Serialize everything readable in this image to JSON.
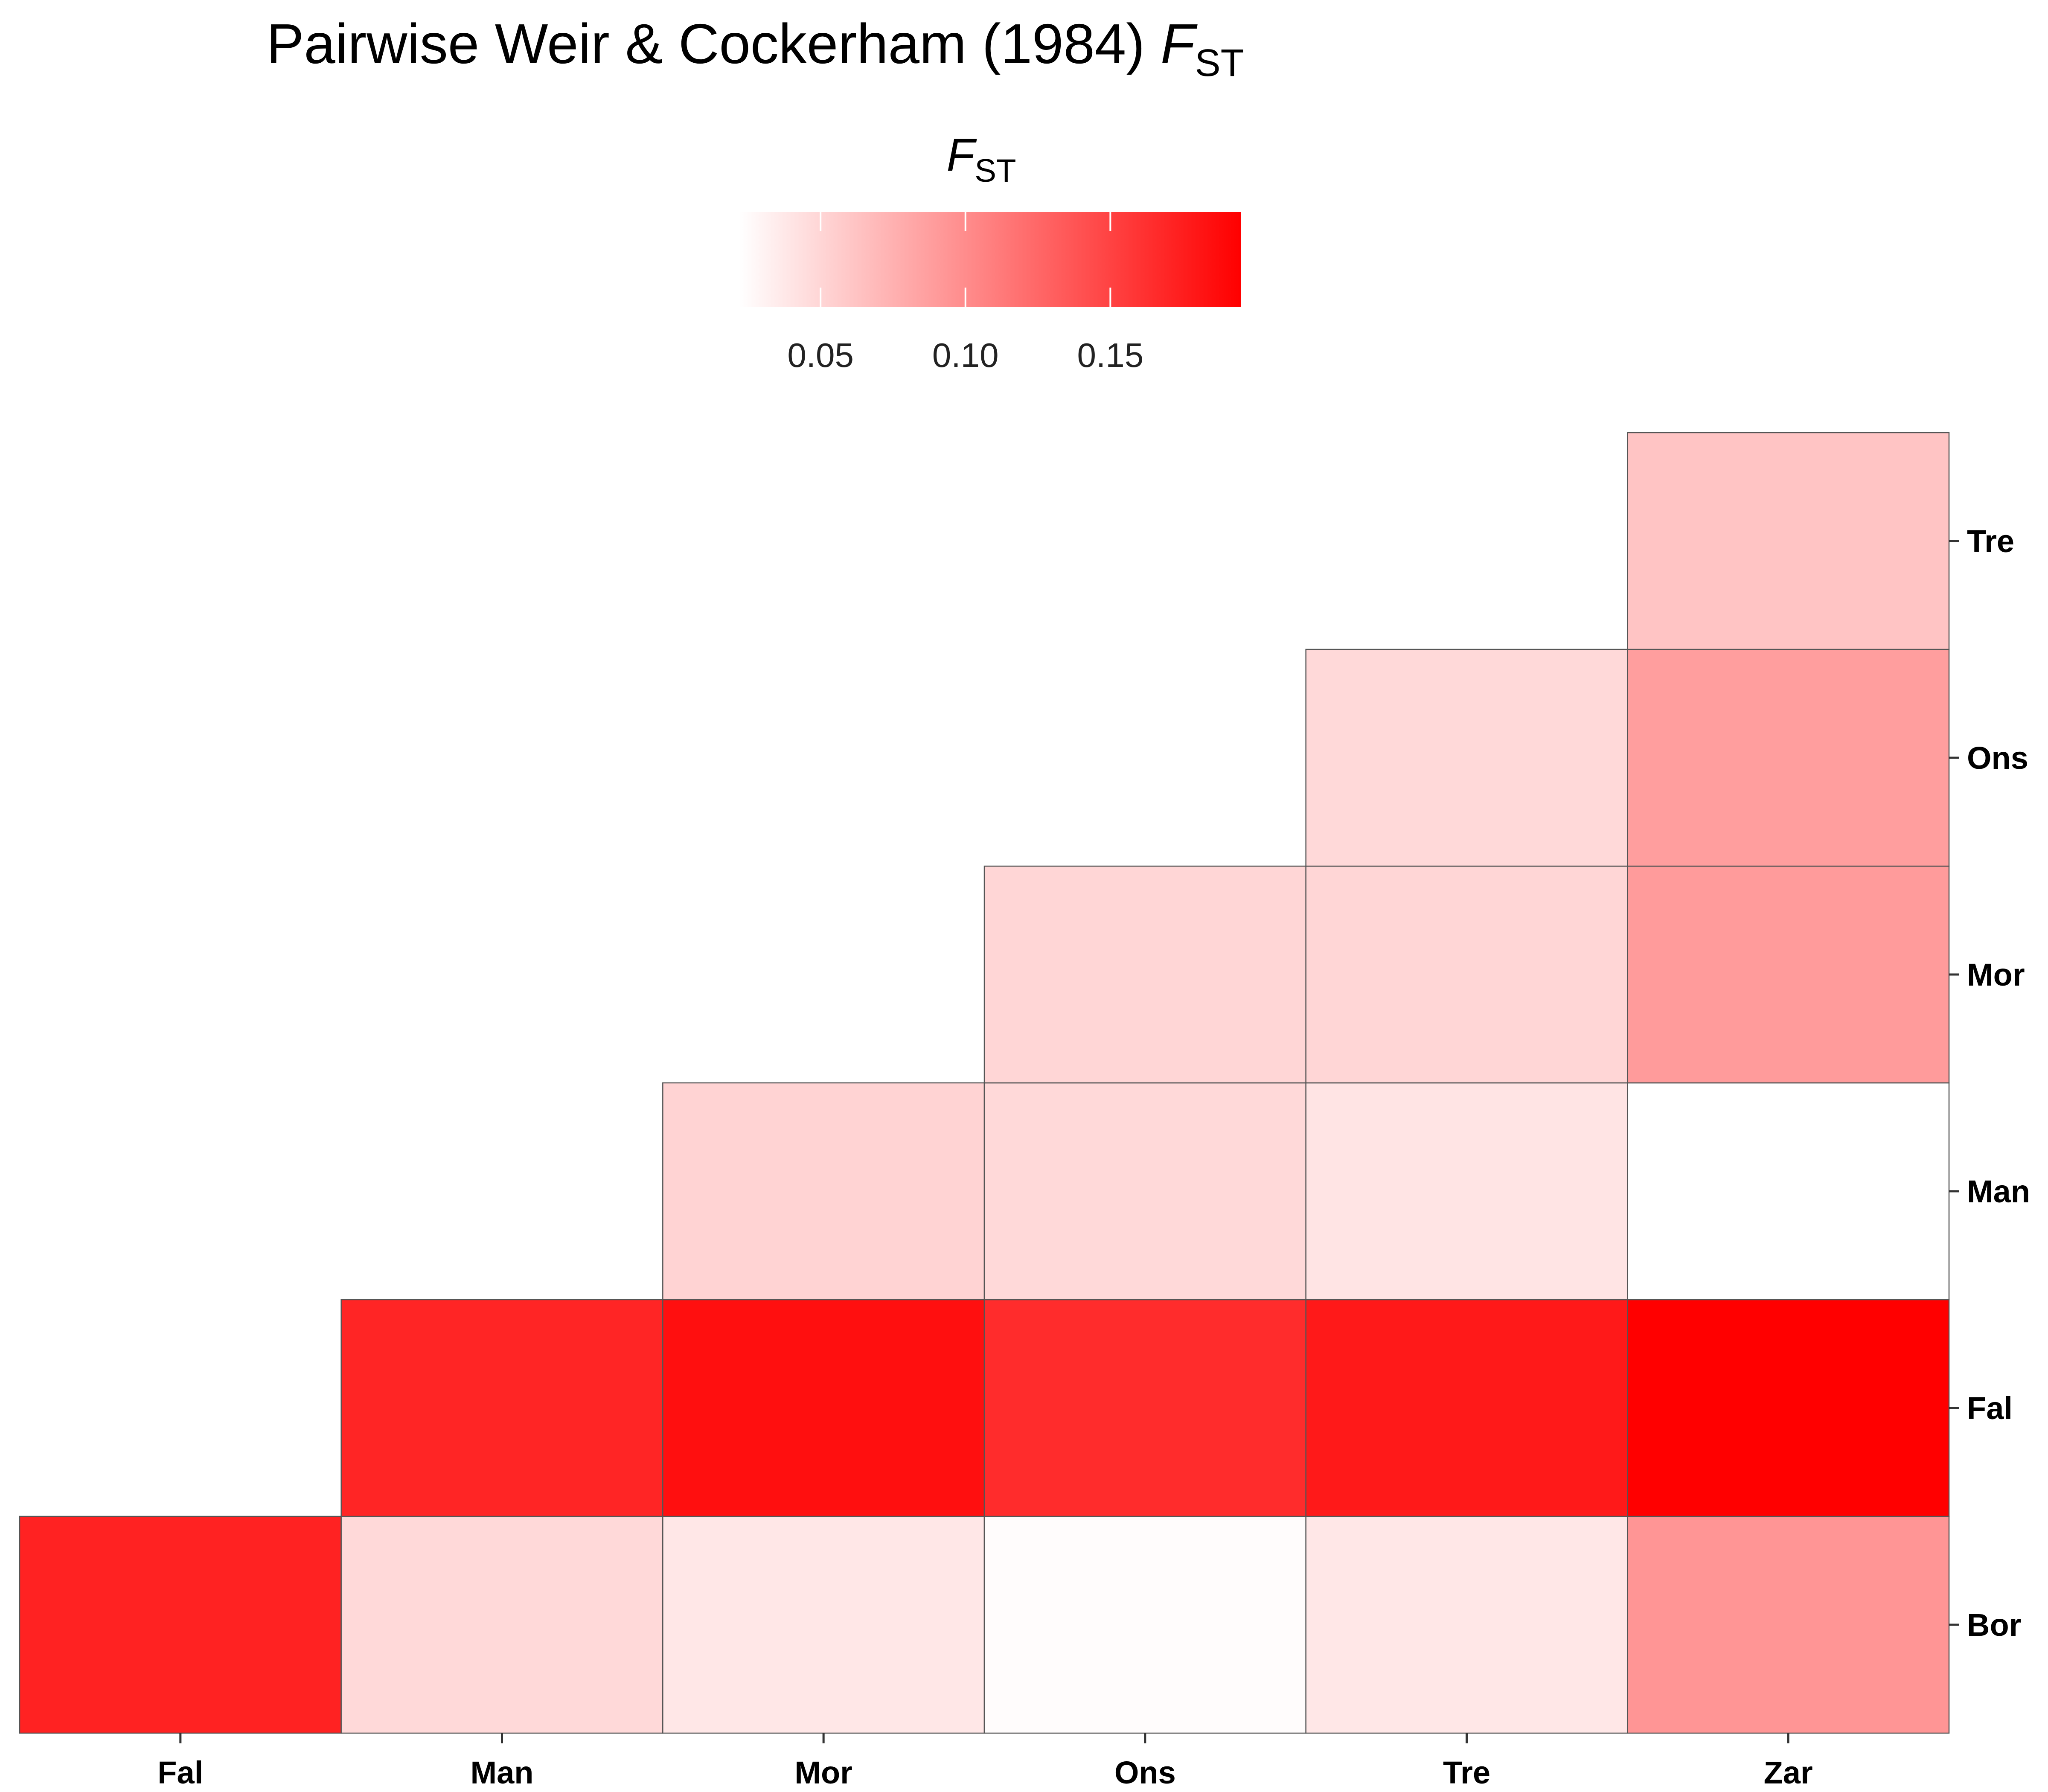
{
  "chart_data": {
    "type": "heatmap",
    "title": "Pairwise Weir & Cockerham (1984) ",
    "title_symbol": "F",
    "title_subscript": "ST",
    "legend": {
      "title_symbol": "F",
      "title_subscript": "ST",
      "placement": "top",
      "range": [
        0.022,
        0.195
      ],
      "ticks": [
        0.05,
        0.1,
        0.15
      ],
      "tick_labels": [
        "0.05",
        "0.10",
        "0.15"
      ],
      "color_low": "#ffffff",
      "color_high": "#ff0000"
    },
    "x_categories": [
      "Fal",
      "Man",
      "Mor",
      "Ons",
      "Tre",
      "Zar"
    ],
    "y_categories": [
      "Bor",
      "Fal",
      "Man",
      "Mor",
      "Ons",
      "Tre"
    ],
    "cells": [
      {
        "x": "Fal",
        "y": "Bor",
        "value": 0.172
      },
      {
        "x": "Man",
        "y": "Bor",
        "value": 0.048
      },
      {
        "x": "Mor",
        "y": "Bor",
        "value": 0.038
      },
      {
        "x": "Ons",
        "y": "Bor",
        "value": 0.024
      },
      {
        "x": "Tre",
        "y": "Bor",
        "value": 0.038
      },
      {
        "x": "Zar",
        "y": "Bor",
        "value": 0.094
      },
      {
        "x": "Man",
        "y": "Fal",
        "value": 0.17
      },
      {
        "x": "Mor",
        "y": "Fal",
        "value": 0.185
      },
      {
        "x": "Ons",
        "y": "Fal",
        "value": 0.165
      },
      {
        "x": "Tre",
        "y": "Fal",
        "value": 0.178
      },
      {
        "x": "Zar",
        "y": "Fal",
        "value": 0.195
      },
      {
        "x": "Mor",
        "y": "Man",
        "value": 0.052
      },
      {
        "x": "Ons",
        "y": "Man",
        "value": 0.048
      },
      {
        "x": "Tre",
        "y": "Man",
        "value": 0.04
      },
      {
        "x": "Zar",
        "y": "Man",
        "value": 0.022
      },
      {
        "x": "Ons",
        "y": "Mor",
        "value": 0.05
      },
      {
        "x": "Tre",
        "y": "Mor",
        "value": 0.05
      },
      {
        "x": "Zar",
        "y": "Mor",
        "value": 0.09
      },
      {
        "x": "Tre",
        "y": "Ons",
        "value": 0.048
      },
      {
        "x": "Zar",
        "y": "Ons",
        "value": 0.088
      },
      {
        "x": "Zar",
        "y": "Tre",
        "value": 0.062
      }
    ],
    "grid": false
  }
}
